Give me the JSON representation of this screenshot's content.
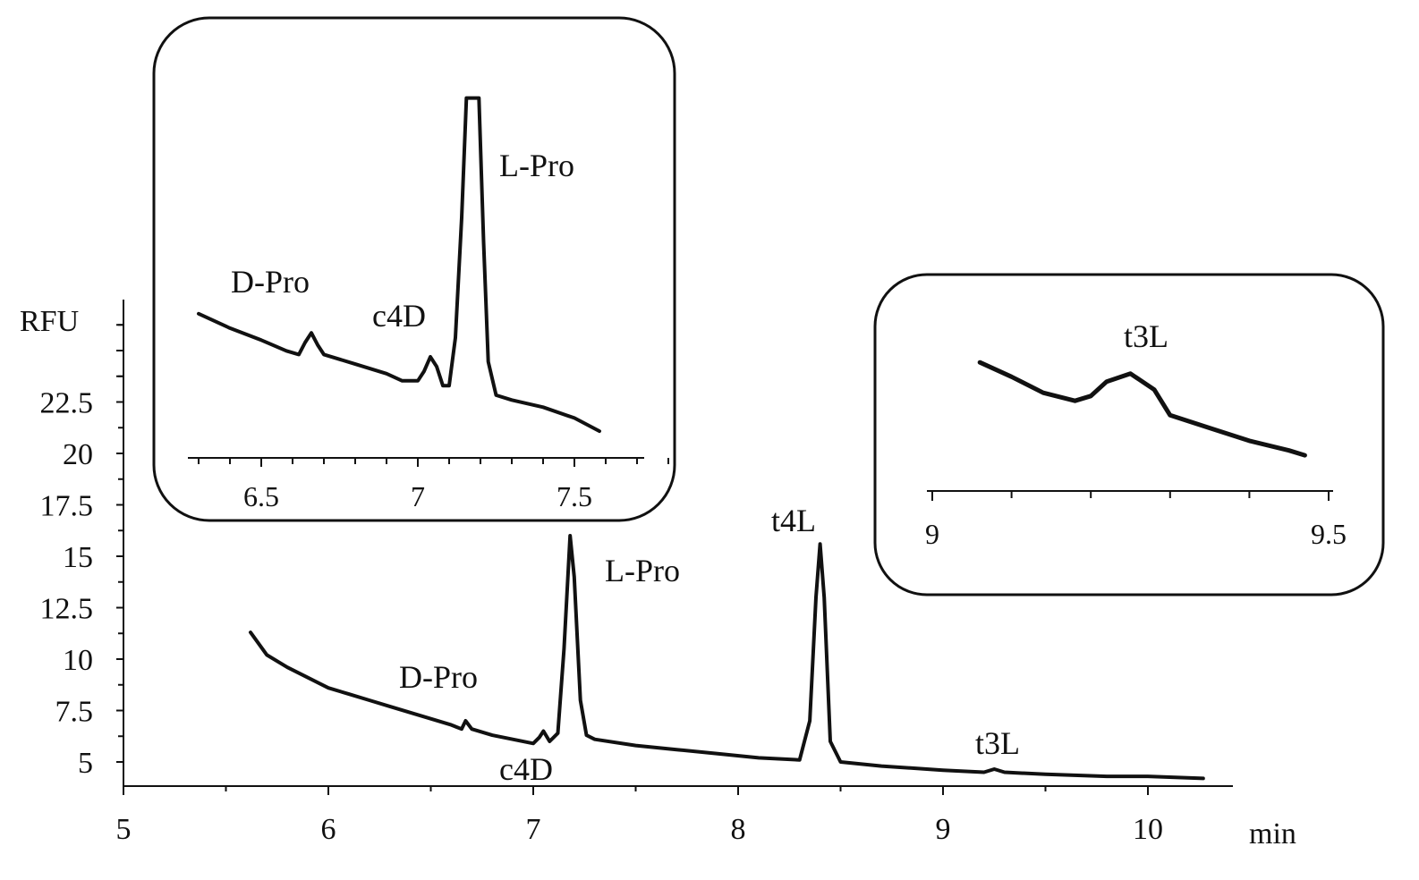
{
  "chart_data": [
    {
      "type": "line",
      "title": "",
      "xlabel": "min",
      "ylabel": "RFU",
      "xlim": [
        5,
        10.5
      ],
      "ylim": [
        4,
        27
      ],
      "x_ticks": [
        5,
        6,
        7,
        8,
        9,
        10
      ],
      "x_tick_labels": [
        "5",
        "6",
        "7",
        "8",
        "9",
        "10"
      ],
      "y_ticks": [
        5,
        7.5,
        10,
        12.5,
        15,
        17.5,
        20,
        22.5
      ],
      "y_tick_labels": [
        "5",
        "7.5",
        "10",
        "12.5",
        "15",
        "17.5",
        "20",
        "22.5"
      ],
      "grid": false,
      "series": [
        {
          "x": [
            5.62,
            5.7,
            5.8,
            5.9,
            6.0,
            6.1,
            6.2,
            6.3,
            6.4,
            6.5,
            6.6,
            6.65,
            6.67,
            6.7,
            6.8,
            6.9,
            7.0,
            7.03,
            7.05,
            7.08,
            7.12,
            7.15,
            7.18,
            7.2,
            7.23,
            7.26,
            7.3,
            7.5,
            7.7,
            7.9,
            8.1,
            8.3,
            8.35,
            8.38,
            8.4,
            8.42,
            8.45,
            8.5,
            8.7,
            9.0,
            9.2,
            9.25,
            9.3,
            9.5,
            9.8,
            10.0,
            10.27
          ],
          "y": [
            11.3,
            10.2,
            9.6,
            9.1,
            8.6,
            8.3,
            8.0,
            7.7,
            7.4,
            7.1,
            6.8,
            6.6,
            7.0,
            6.6,
            6.3,
            6.1,
            5.9,
            6.2,
            6.5,
            6.0,
            6.4,
            10.5,
            16.0,
            14.0,
            8.0,
            6.3,
            6.1,
            5.8,
            5.6,
            5.4,
            5.2,
            5.1,
            7.0,
            13.0,
            15.6,
            13.0,
            6.0,
            5.0,
            4.8,
            4.6,
            4.5,
            4.65,
            4.5,
            4.4,
            4.3,
            4.3,
            4.2
          ]
        }
      ],
      "annotations": [
        {
          "text": "D-Pro",
          "x": 6.66
        },
        {
          "text": "c4D",
          "x": 7.05
        },
        {
          "text": "L-Pro",
          "x": 7.18
        },
        {
          "text": "t4L",
          "x": 8.4
        },
        {
          "text": "t3L",
          "x": 9.25
        }
      ]
    },
    {
      "type": "line",
      "title": "",
      "xlabel": "",
      "ylabel": "",
      "xlim": [
        6.3,
        7.85
      ],
      "x_ticks": [
        6.5,
        7,
        7.5
      ],
      "x_tick_labels": [
        "6.5",
        "7",
        "7.5"
      ],
      "grid": false,
      "series": [
        {
          "x": [
            6.3,
            6.4,
            6.5,
            6.58,
            6.62,
            6.64,
            6.66,
            6.68,
            6.7,
            6.8,
            6.9,
            6.95,
            7.0,
            7.02,
            7.04,
            7.06,
            7.08,
            7.1,
            7.12,
            7.14,
            7.155,
            7.17,
            7.195,
            7.21,
            7.225,
            7.25,
            7.3,
            7.4,
            7.5,
            7.58
          ],
          "y": [
            12.0,
            10.8,
            9.8,
            8.9,
            8.6,
            9.6,
            10.4,
            9.4,
            8.6,
            7.8,
            7.0,
            6.4,
            6.4,
            7.2,
            8.4,
            7.6,
            6.0,
            6.0,
            10.0,
            20.0,
            30.0,
            30.0,
            30.0,
            18.0,
            8.0,
            5.2,
            4.8,
            4.2,
            3.3,
            2.2
          ]
        }
      ],
      "annotations": [
        {
          "text": "D-Pro",
          "x": 6.66
        },
        {
          "text": "c4D",
          "x": 7.05
        },
        {
          "text": "L-Pro",
          "x": 7.18
        }
      ]
    },
    {
      "type": "line",
      "title": "",
      "xlabel": "",
      "ylabel": "",
      "xlim": [
        9.0,
        9.5
      ],
      "x_ticks": [
        9,
        9.5
      ],
      "x_tick_labels": [
        "9",
        "9.5"
      ],
      "grid": false,
      "series": [
        {
          "x": [
            9.06,
            9.1,
            9.14,
            9.18,
            9.2,
            9.22,
            9.25,
            9.28,
            9.3,
            9.35,
            9.4,
            9.45,
            9.47
          ],
          "y": [
            6.3,
            5.4,
            4.4,
            3.9,
            4.2,
            5.1,
            5.6,
            4.6,
            3.0,
            2.2,
            1.4,
            0.8,
            0.5
          ]
        }
      ],
      "annotations": [
        {
          "text": "t3L",
          "x": 9.25
        }
      ]
    }
  ]
}
